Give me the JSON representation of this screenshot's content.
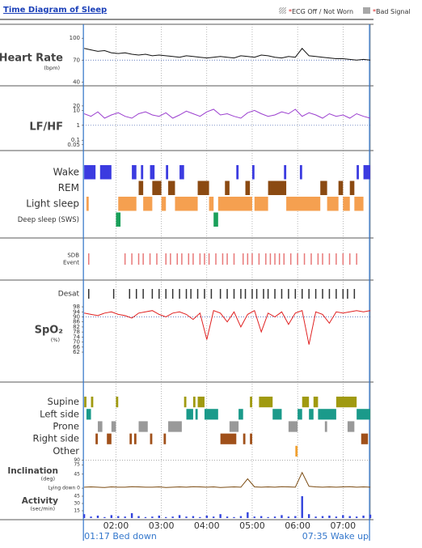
{
  "header": {
    "title": "Time Diagram of Sleep",
    "legend": [
      {
        "marker": "*",
        "label": "ECG Off / Not Worn",
        "color": "#d0d0d0",
        "pattern": "hatch"
      },
      {
        "marker": "*",
        "label": "Bad Signal",
        "color": "#a8a8a8"
      }
    ]
  },
  "chart_data": {
    "type": "timeline",
    "xlim": [
      1.28,
      7.6
    ],
    "xticks": [
      {
        "value": 2,
        "label": "02:00"
      },
      {
        "value": 3,
        "label": "03:00"
      },
      {
        "value": 4,
        "label": "04:00"
      },
      {
        "value": 5,
        "label": "05:00"
      },
      {
        "value": 6,
        "label": "06:00"
      },
      {
        "value": 7,
        "label": "07:00"
      }
    ],
    "annotations": [
      {
        "value": 1.2833,
        "label": "01:17 Bed down"
      },
      {
        "value": 7.5833,
        "label": "07:35 Wake up"
      }
    ],
    "x": [
      1.3,
      1.45,
      1.6,
      1.75,
      1.9,
      2.05,
      2.2,
      2.35,
      2.5,
      2.65,
      2.8,
      2.95,
      3.1,
      3.25,
      3.4,
      3.55,
      3.7,
      3.85,
      4,
      4.15,
      4.3,
      4.45,
      4.6,
      4.75,
      4.9,
      5.05,
      5.2,
      5.35,
      5.5,
      5.65,
      5.8,
      5.95,
      6.1,
      6.25,
      6.4,
      6.55,
      6.7,
      6.85,
      7,
      7.15,
      7.3,
      7.45,
      7.6
    ],
    "panels": [
      {
        "type": "line",
        "label": "Heart Rate",
        "unit": "(bpm)",
        "ylim": [
          37,
          118
        ],
        "yticks": [
          40,
          70,
          100
        ],
        "reference": 70,
        "series": [
          {
            "color": "#111111",
            "values": [
              86,
              84,
              82,
              83,
              80,
              79,
              80,
              78,
              77,
              78,
              76,
              77,
              76,
              75,
              74,
              76,
              75,
              74,
              73,
              74,
              75,
              74,
              73,
              76,
              75,
              74,
              77,
              76,
              74,
              73,
              75,
              74,
              86,
              76,
              75,
              74,
              73,
              72,
              72,
              71,
              70,
              71,
              70
            ]
          }
        ]
      },
      {
        "type": "line",
        "label": "LF/HF",
        "log": true,
        "ylim": [
          0.026,
          350
        ],
        "yticks": [
          0.05,
          0.1,
          1,
          10,
          20
        ],
        "reference": 1,
        "series": [
          {
            "color": "#9b3fcf",
            "values": [
              6,
              4,
              8,
              3,
              5,
              7,
              4,
              3,
              6,
              8,
              5,
              4,
              7,
              3,
              5,
              9,
              6,
              4,
              8,
              12,
              5,
              6,
              4,
              3,
              7,
              10,
              6,
              4,
              5,
              8,
              6,
              12,
              4,
              7,
              5,
              3,
              6,
              4,
              5,
              3,
              6,
              4,
              3
            ]
          }
        ]
      },
      {
        "type": "state",
        "rows": [
          {
            "name": "Wake",
            "color": "#3b3be0",
            "intervals": [
              [
                1.3,
                1.55
              ],
              [
                1.65,
                1.9
              ],
              [
                2.35,
                2.45
              ],
              [
                2.55,
                2.6
              ],
              [
                2.75,
                2.85
              ],
              [
                3.1,
                3.15
              ],
              [
                3.4,
                3.5
              ],
              [
                4.65,
                4.7
              ],
              [
                5.0,
                5.05
              ],
              [
                5.7,
                5.75
              ],
              [
                6.05,
                6.1
              ],
              [
                7.3,
                7.35
              ],
              [
                7.45,
                7.6
              ]
            ]
          },
          {
            "name": "REM",
            "color": "#8b4a12",
            "intervals": [
              [
                2.5,
                2.6
              ],
              [
                2.8,
                3.0
              ],
              [
                3.15,
                3.3
              ],
              [
                3.8,
                4.05
              ],
              [
                4.4,
                4.5
              ],
              [
                4.85,
                4.95
              ],
              [
                5.35,
                5.75
              ],
              [
                6.5,
                6.65
              ],
              [
                6.9,
                7.0
              ],
              [
                7.15,
                7.25
              ]
            ]
          },
          {
            "name": "Light sleep",
            "color": "#f5a050",
            "intervals": [
              [
                1.35,
                1.4
              ],
              [
                2.05,
                2.45
              ],
              [
                2.6,
                2.8
              ],
              [
                3.0,
                3.1
              ],
              [
                3.3,
                3.8
              ],
              [
                4.05,
                4.15
              ],
              [
                4.25,
                5.0
              ],
              [
                5.05,
                5.35
              ],
              [
                5.75,
                6.5
              ],
              [
                6.65,
                6.9
              ],
              [
                7.0,
                7.15
              ],
              [
                7.25,
                7.45
              ]
            ]
          },
          {
            "name": "Deep sleep (SWS)",
            "color": "#1aa05a",
            "intervals": [
              [
                2.0,
                2.1
              ],
              [
                4.15,
                4.25
              ]
            ]
          }
        ]
      },
      {
        "type": "event",
        "label": [
          "SDB",
          "Event"
        ],
        "color": "#e87878",
        "times": [
          1.4,
          2.2,
          2.35,
          2.5,
          2.6,
          2.75,
          2.9,
          3.1,
          3.2,
          3.35,
          3.45,
          3.6,
          3.7,
          3.85,
          3.95,
          4.05,
          4.2,
          4.35,
          4.45,
          4.6,
          4.8,
          4.9,
          5.0,
          5.15,
          5.3,
          5.4,
          5.5,
          5.6,
          5.7,
          5.85,
          6.0,
          6.15,
          6.3,
          6.45,
          6.55,
          6.7,
          6.85,
          7.0,
          7.15,
          7.3
        ]
      },
      {
        "type": "event",
        "label": [
          "Desat"
        ],
        "color": "#333333",
        "times": [
          1.4,
          1.95,
          2.3,
          2.45,
          2.6,
          2.8,
          2.95,
          3.1,
          3.25,
          3.4,
          3.55,
          3.65,
          3.8,
          3.95,
          4.1,
          4.3,
          4.45,
          4.6,
          4.75,
          4.85,
          5.0,
          5.1,
          5.25,
          5.35,
          5.5,
          5.65,
          5.8,
          5.95,
          6.1,
          6.25,
          6.4,
          6.55,
          6.7,
          6.85,
          7.0,
          7.1,
          7.25
        ]
      },
      {
        "type": "line",
        "label": "SpO₂",
        "unit": "(%)",
        "ylim": [
          58.8,
          100.6
        ],
        "yticks": [
          62,
          66,
          70,
          74,
          78,
          82,
          86,
          90,
          94,
          98
        ],
        "reference": 90,
        "series": [
          {
            "color": "#e02020",
            "values": [
              93,
              92,
              91,
              93,
              94,
              92,
              91,
              89,
              93,
              94,
              95,
              92,
              90,
              93,
              94,
              92,
              88,
              93,
              72,
              95,
              93,
              86,
              94,
              82,
              92,
              95,
              78,
              93,
              90,
              94,
              84,
              93,
              95,
              68,
              94,
              92,
              85,
              94,
              93,
              94,
              95,
              94,
              95
            ]
          }
        ]
      },
      {
        "type": "state",
        "rows": [
          {
            "name": "Supine",
            "color": "#a09a10",
            "intervals": [
              [
                1.3,
                1.35
              ],
              [
                1.45,
                1.5
              ],
              [
                2.0,
                2.05
              ],
              [
                3.5,
                3.55
              ],
              [
                3.7,
                3.75
              ],
              [
                3.8,
                3.95
              ],
              [
                4.95,
                5.0
              ],
              [
                5.15,
                5.45
              ],
              [
                6.1,
                6.25
              ],
              [
                6.35,
                6.45
              ],
              [
                6.85,
                7.3
              ]
            ]
          },
          {
            "name": "Left side",
            "color": "#1a9a8a",
            "intervals": [
              [
                1.35,
                1.45
              ],
              [
                3.55,
                3.7
              ],
              [
                3.75,
                3.8
              ],
              [
                3.95,
                4.25
              ],
              [
                4.7,
                4.8
              ],
              [
                5.45,
                5.65
              ],
              [
                6.0,
                6.1
              ],
              [
                6.25,
                6.35
              ],
              [
                6.45,
                6.85
              ],
              [
                7.3,
                7.6
              ]
            ]
          },
          {
            "name": "Prone",
            "color": "#999999",
            "intervals": [
              [
                1.6,
                1.7
              ],
              [
                1.9,
                2.0
              ],
              [
                2.5,
                2.7
              ],
              [
                3.15,
                3.45
              ],
              [
                4.5,
                4.7
              ],
              [
                5.8,
                6.0
              ],
              [
                6.6,
                6.65
              ],
              [
                7.1,
                7.25
              ]
            ]
          },
          {
            "name": "Right side",
            "color": "#a0501a",
            "intervals": [
              [
                1.55,
                1.6
              ],
              [
                1.8,
                1.9
              ],
              [
                2.3,
                2.35
              ],
              [
                2.4,
                2.45
              ],
              [
                2.75,
                2.8
              ],
              [
                3.05,
                3.1
              ],
              [
                4.3,
                4.65
              ],
              [
                4.8,
                4.85
              ],
              [
                4.95,
                5.0
              ],
              [
                7.4,
                7.55
              ]
            ]
          },
          {
            "name": "Other",
            "color": "#f0a030",
            "intervals": [
              [
                5.95,
                6.0
              ]
            ]
          }
        ]
      },
      {
        "type": "line",
        "label": "Inclination",
        "unit": "(deg)",
        "ylim": [
          -5,
          99
        ],
        "yticks": [
          {
            "value": 0,
            "label": "Lying down 0"
          },
          45,
          75,
          90
        ],
        "reference": 90,
        "series": [
          {
            "color": "#7a4a10",
            "values": [
              3,
              4,
              3,
              2,
              4,
              3,
              3,
              5,
              4,
              3,
              3,
              4,
              2,
              3,
              4,
              3,
              5,
              4,
              3,
              4,
              2,
              3,
              4,
              3,
              30,
              4,
              3,
              4,
              3,
              5,
              4,
              3,
              50,
              6,
              4,
              3,
              4,
              3,
              4,
              5,
              3,
              4,
              3
            ]
          }
        ]
      },
      {
        "type": "bar",
        "label": "Activity",
        "unit": "(sec/min)",
        "ylim": [
          0,
          55
        ],
        "yticks": [
          15,
          30,
          45
        ],
        "series": [
          {
            "color": "#3344dd",
            "values": [
              8,
              3,
              5,
              2,
              6,
              4,
              3,
              10,
              4,
              2,
              3,
              5,
              2,
              3,
              6,
              3,
              4,
              2,
              5,
              3,
              8,
              3,
              2,
              4,
              12,
              3,
              4,
              2,
              3,
              6,
              3,
              4,
              45,
              8,
              3,
              4,
              5,
              3,
              6,
              4,
              3,
              5,
              7
            ]
          }
        ]
      }
    ]
  }
}
